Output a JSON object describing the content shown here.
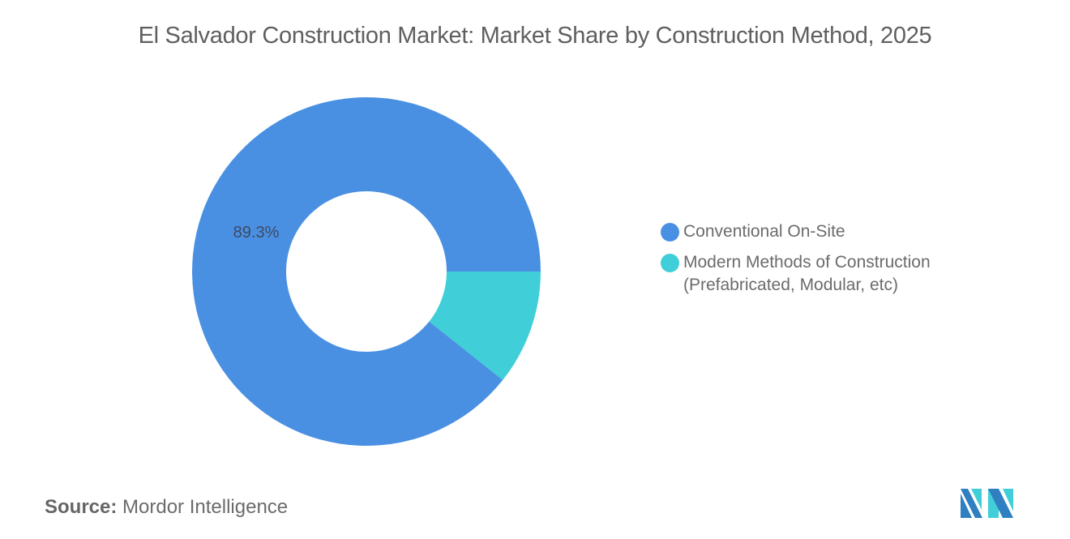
{
  "header": {
    "title": "El Salvador Construction Market: Market Share by Construction Method, 2025"
  },
  "chart_data": {
    "type": "pie",
    "subtype": "donut",
    "title": "El Salvador Construction Market: Market Share by Construction Method, 2025",
    "categories": [
      "Conventional On-Site",
      "Modern Methods of Construction (Prefabricated, Modular, etc)"
    ],
    "values": [
      89.3,
      10.7
    ],
    "colors": [
      "#4A90E2",
      "#40CFD9"
    ],
    "data_labels": [
      "89.3%",
      ""
    ],
    "legend_position": "right"
  },
  "legend": {
    "items": [
      {
        "label": "Conventional On-Site",
        "color": "#4A90E2"
      },
      {
        "label": "Modern Methods of Construction (Prefabricated, Modular, etc)",
        "line1": "Modern Methods of Construction",
        "line2": "(Prefabricated, Modular, etc)",
        "color": "#40CFD9"
      }
    ]
  },
  "labels": {
    "conventional_pct": "89.3%"
  },
  "footer": {
    "source_key": "Source:",
    "source_value": "Mordor Intelligence"
  },
  "logo": {
    "name": "mordor-intelligence-logo"
  }
}
